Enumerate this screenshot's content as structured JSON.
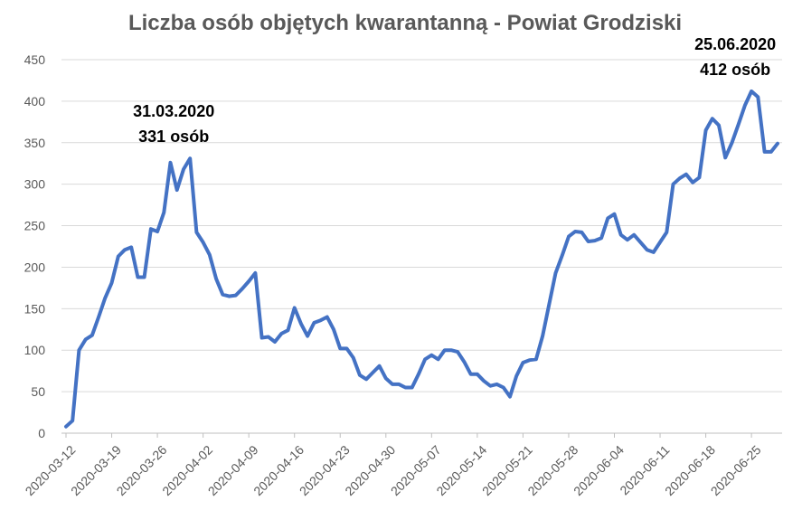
{
  "chart_data": {
    "type": "line",
    "title": "Liczba osób objętych kwarantanną - Powiat Grodziski",
    "xlabel": "",
    "ylabel": "",
    "ylim": [
      0,
      450
    ],
    "yticks": [
      0,
      50,
      100,
      150,
      200,
      250,
      300,
      350,
      400,
      450
    ],
    "xticks": [
      "2020-03-12",
      "2020-03-19",
      "2020-03-26",
      "2020-04-02",
      "2020-04-09",
      "2020-04-16",
      "2020-04-23",
      "2020-04-30",
      "2020-05-07",
      "2020-05-14",
      "2020-05-21",
      "2020-05-28",
      "2020-06-04",
      "2020-06-11",
      "2020-06-18",
      "2020-06-25"
    ],
    "grid": true,
    "color": "#4472c4",
    "series": [
      {
        "x_start": "2020-03-12",
        "x_end": "2020-06-29",
        "values": [
          8,
          15,
          100,
          113,
          118,
          140,
          163,
          181,
          213,
          221,
          224,
          188,
          188,
          246,
          243,
          266,
          326,
          293,
          318,
          331,
          242,
          230,
          215,
          186,
          167,
          165,
          166,
          174,
          183,
          193,
          115,
          116,
          110,
          120,
          124,
          151,
          132,
          117,
          133,
          136,
          140,
          125,
          102,
          102,
          91,
          70,
          65,
          73,
          81,
          66,
          59,
          59,
          55,
          55,
          71,
          89,
          94,
          89,
          100,
          100,
          98,
          86,
          71,
          71,
          63,
          57,
          59,
          55,
          44,
          69,
          85,
          88,
          89,
          117,
          155,
          193,
          214,
          237,
          243,
          242,
          231,
          232,
          235,
          259,
          264,
          239,
          233,
          239,
          230,
          221,
          218,
          230,
          242,
          300,
          307,
          312,
          302,
          308,
          365,
          379,
          371,
          332,
          350,
          372,
          395,
          412,
          405,
          339,
          339,
          349
        ]
      }
    ],
    "annotations": [
      {
        "date": "2020-03-31",
        "line1": "31.03.2020",
        "line2": "331 osób",
        "value": 331
      },
      {
        "date": "2020-06-25",
        "line1": "25.06.2020",
        "line2": "412 osób",
        "value": 412
      }
    ]
  }
}
